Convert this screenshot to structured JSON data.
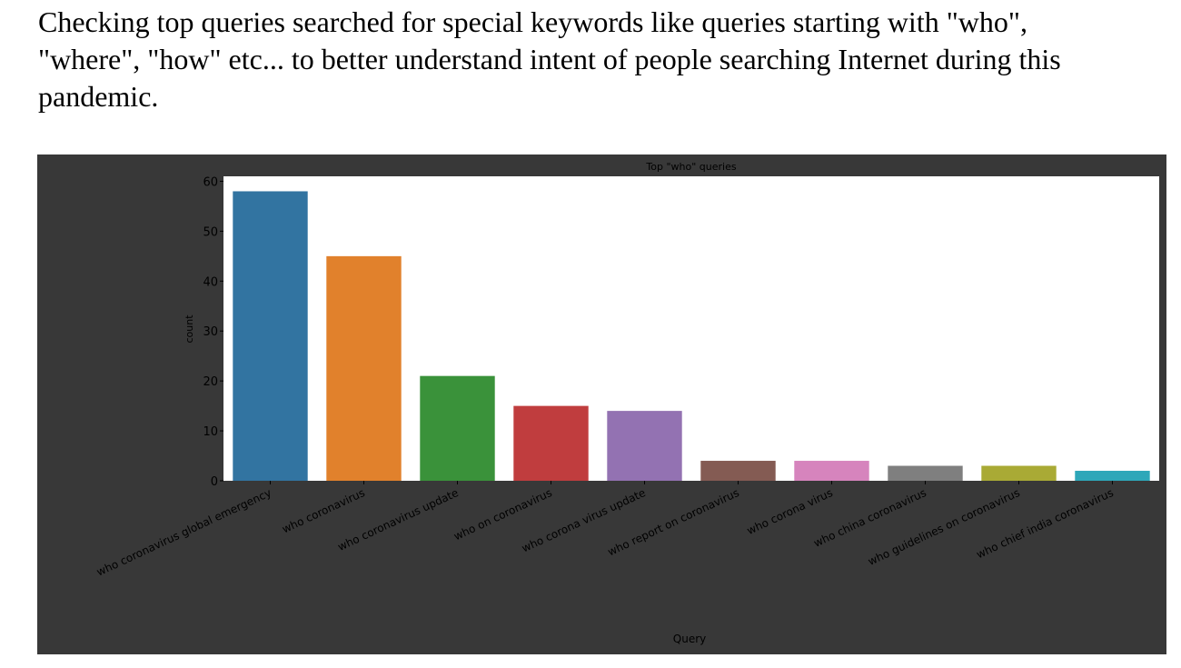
{
  "intro": {
    "text": "Checking top queries searched for special keywords like queries starting with \"who\", \"where\", \"how\" etc... to better understand intent of people searching Internet during this pandemic."
  },
  "chart_data": {
    "type": "bar",
    "title": "Top \"who\" queries",
    "xlabel": "Query",
    "ylabel": "count",
    "categories": [
      "who coronavirus global emergency",
      "who coronavirus",
      "who coronavirus update",
      "who on coronavirus",
      "who corona virus update",
      "who report on coronavirus",
      "who corona virus",
      "who china coronavirus",
      "who guidelines on coronavirus",
      "who chief india coronavirus"
    ],
    "values": [
      58,
      45,
      21,
      15,
      14,
      4,
      4,
      3,
      3,
      2
    ],
    "colors": [
      "#3274a1",
      "#e1812c",
      "#3a923a",
      "#c03d3e",
      "#9372b2",
      "#845b53",
      "#d684bd",
      "#7f7f7f",
      "#a9aa35",
      "#2ea7b9"
    ],
    "yticks": [
      0,
      10,
      20,
      30,
      40,
      50,
      60
    ],
    "ylim": [
      0,
      61
    ],
    "grid": false,
    "legend": "none"
  }
}
